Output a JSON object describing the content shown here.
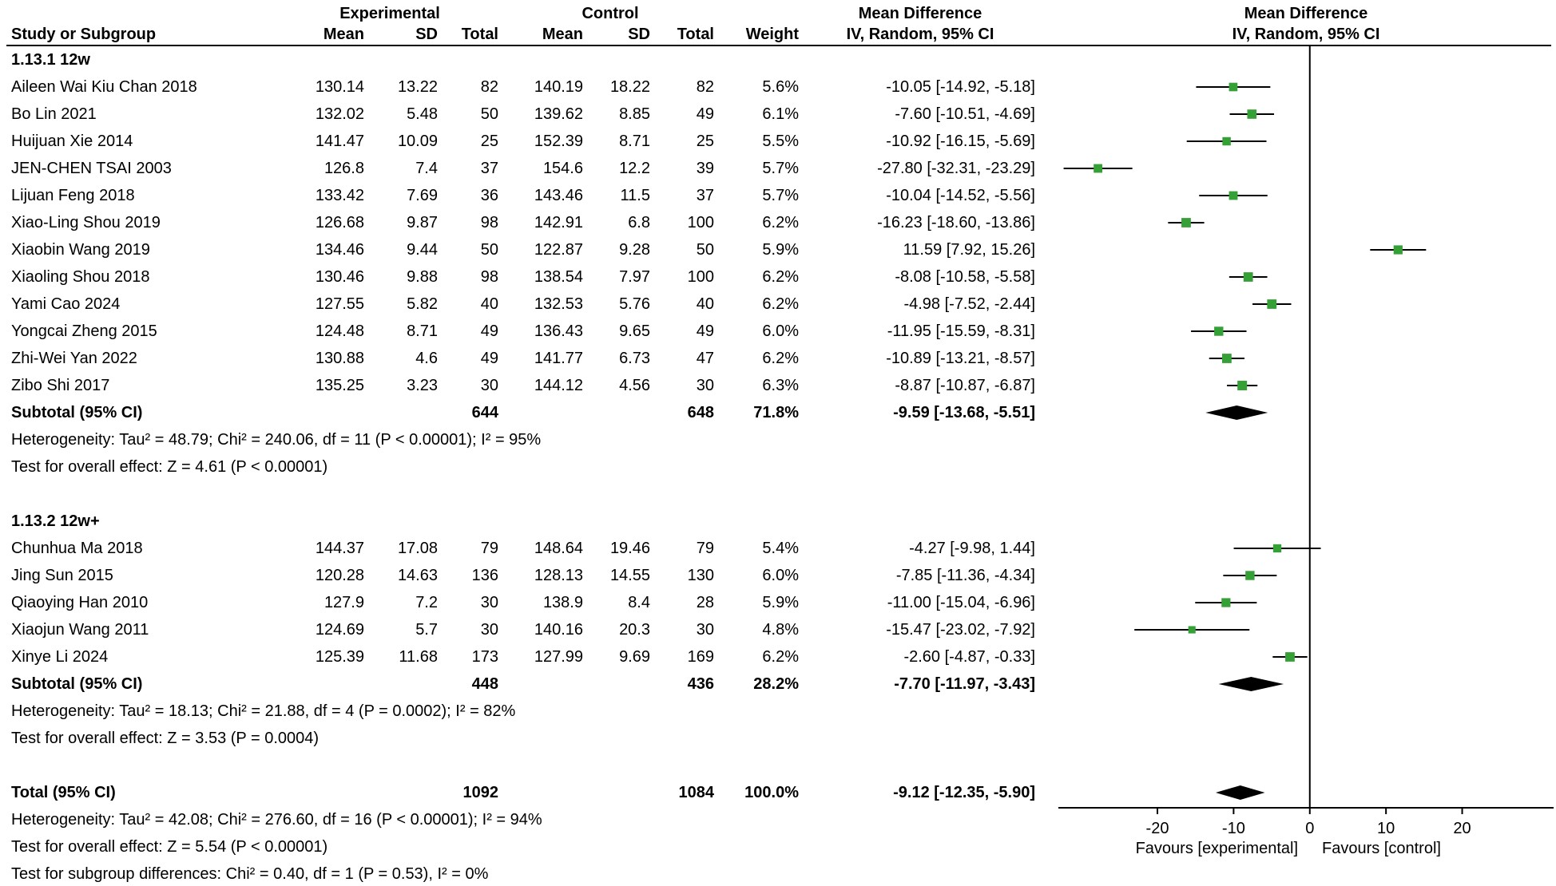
{
  "colors": {
    "square": "#35a035",
    "line": "#000000",
    "diamond": "#000000",
    "text": "#000000",
    "background": "#ffffff"
  },
  "chart_data": {
    "type": "forest",
    "group_headers": {
      "experimental": "Experimental",
      "control": "Control",
      "mean_difference_text": "Mean Difference",
      "mean_difference_plot": "Mean Difference"
    },
    "column_headers": {
      "study": "Study or Subgroup",
      "mean_e": "Mean",
      "sd_e": "SD",
      "total_e": "Total",
      "mean_c": "Mean",
      "sd_c": "SD",
      "total_c": "Total",
      "weight": "Weight",
      "ci_text": "IV, Random, 95% CI",
      "ci_plot": "IV, Random, 95% CI"
    },
    "axis": {
      "min": -33,
      "max": 32,
      "ticks": [
        -20,
        -10,
        0,
        10,
        20
      ],
      "favours_left": "Favours [experimental]",
      "favours_right": "Favours [control]"
    },
    "subgroups": [
      {
        "label": "1.13.1 12w",
        "studies": [
          {
            "name": "Aileen Wai Kiu Chan 2018",
            "mean_e": "130.14",
            "sd_e": "13.22",
            "total_e": "82",
            "mean_c": "140.19",
            "sd_c": "18.22",
            "total_c": "82",
            "weight": "5.6%",
            "ci_text": "-10.05 [-14.92, -5.18]",
            "md": -10.05,
            "lo": -14.92,
            "hi": -5.18,
            "w": 5.6
          },
          {
            "name": "Bo Lin 2021",
            "mean_e": "132.02",
            "sd_e": "5.48",
            "total_e": "50",
            "mean_c": "139.62",
            "sd_c": "8.85",
            "total_c": "49",
            "weight": "6.1%",
            "ci_text": "-7.60 [-10.51, -4.69]",
            "md": -7.6,
            "lo": -10.51,
            "hi": -4.69,
            "w": 6.1
          },
          {
            "name": "Huijuan Xie 2014",
            "mean_e": "141.47",
            "sd_e": "10.09",
            "total_e": "25",
            "mean_c": "152.39",
            "sd_c": "8.71",
            "total_c": "25",
            "weight": "5.5%",
            "ci_text": "-10.92 [-16.15, -5.69]",
            "md": -10.92,
            "lo": -16.15,
            "hi": -5.69,
            "w": 5.5
          },
          {
            "name": "JEN-CHEN TSAI 2003",
            "mean_e": "126.8",
            "sd_e": "7.4",
            "total_e": "37",
            "mean_c": "154.6",
            "sd_c": "12.2",
            "total_c": "39",
            "weight": "5.7%",
            "ci_text": "-27.80 [-32.31, -23.29]",
            "md": -27.8,
            "lo": -32.31,
            "hi": -23.29,
            "w": 5.7
          },
          {
            "name": "Lijuan Feng 2018",
            "mean_e": "133.42",
            "sd_e": "7.69",
            "total_e": "36",
            "mean_c": "143.46",
            "sd_c": "11.5",
            "total_c": "37",
            "weight": "5.7%",
            "ci_text": "-10.04 [-14.52, -5.56]",
            "md": -10.04,
            "lo": -14.52,
            "hi": -5.56,
            "w": 5.7
          },
          {
            "name": "Xiao-Ling Shou 2019",
            "mean_e": "126.68",
            "sd_e": "9.87",
            "total_e": "98",
            "mean_c": "142.91",
            "sd_c": "6.8",
            "total_c": "100",
            "weight": "6.2%",
            "ci_text": "-16.23 [-18.60, -13.86]",
            "md": -16.23,
            "lo": -18.6,
            "hi": -13.86,
            "w": 6.2
          },
          {
            "name": "Xiaobin Wang 2019",
            "mean_e": "134.46",
            "sd_e": "9.44",
            "total_e": "50",
            "mean_c": "122.87",
            "sd_c": "9.28",
            "total_c": "50",
            "weight": "5.9%",
            "ci_text": "11.59 [7.92, 15.26]",
            "md": 11.59,
            "lo": 7.92,
            "hi": 15.26,
            "w": 5.9
          },
          {
            "name": "Xiaoling Shou 2018",
            "mean_e": "130.46",
            "sd_e": "9.88",
            "total_e": "98",
            "mean_c": "138.54",
            "sd_c": "7.97",
            "total_c": "100",
            "weight": "6.2%",
            "ci_text": "-8.08 [-10.58, -5.58]",
            "md": -8.08,
            "lo": -10.58,
            "hi": -5.58,
            "w": 6.2
          },
          {
            "name": "Yami Cao 2024",
            "mean_e": "127.55",
            "sd_e": "5.82",
            "total_e": "40",
            "mean_c": "132.53",
            "sd_c": "5.76",
            "total_c": "40",
            "weight": "6.2%",
            "ci_text": "-4.98 [-7.52, -2.44]",
            "md": -4.98,
            "lo": -7.52,
            "hi": -2.44,
            "w": 6.2
          },
          {
            "name": "Yongcai Zheng 2015",
            "mean_e": "124.48",
            "sd_e": "8.71",
            "total_e": "49",
            "mean_c": "136.43",
            "sd_c": "9.65",
            "total_c": "49",
            "weight": "6.0%",
            "ci_text": "-11.95 [-15.59, -8.31]",
            "md": -11.95,
            "lo": -15.59,
            "hi": -8.31,
            "w": 6.0
          },
          {
            "name": "Zhi-Wei Yan 2022",
            "mean_e": "130.88",
            "sd_e": "4.6",
            "total_e": "49",
            "mean_c": "141.77",
            "sd_c": "6.73",
            "total_c": "47",
            "weight": "6.2%",
            "ci_text": "-10.89 [-13.21, -8.57]",
            "md": -10.89,
            "lo": -13.21,
            "hi": -8.57,
            "w": 6.2
          },
          {
            "name": "Zibo Shi 2017",
            "mean_e": "135.25",
            "sd_e": "3.23",
            "total_e": "30",
            "mean_c": "144.12",
            "sd_c": "4.56",
            "total_c": "30",
            "weight": "6.3%",
            "ci_text": "-8.87 [-10.87, -6.87]",
            "md": -8.87,
            "lo": -10.87,
            "hi": -6.87,
            "w": 6.3
          }
        ],
        "subtotal": {
          "label": "Subtotal (95% CI)",
          "total_e": "644",
          "total_c": "648",
          "weight": "71.8%",
          "ci_text": "-9.59 [-13.68, -5.51]",
          "md": -9.59,
          "lo": -13.68,
          "hi": -5.51
        },
        "heterogeneity": "Heterogeneity: Tau² = 48.79; Chi² = 240.06, df = 11 (P < 0.00001); I² = 95%",
        "overall_effect": "Test for overall effect: Z = 4.61 (P < 0.00001)"
      },
      {
        "label": "1.13.2 12w+",
        "studies": [
          {
            "name": "Chunhua Ma 2018",
            "mean_e": "144.37",
            "sd_e": "17.08",
            "total_e": "79",
            "mean_c": "148.64",
            "sd_c": "19.46",
            "total_c": "79",
            "weight": "5.4%",
            "ci_text": "-4.27 [-9.98, 1.44]",
            "md": -4.27,
            "lo": -9.98,
            "hi": 1.44,
            "w": 5.4
          },
          {
            "name": "Jing Sun 2015",
            "mean_e": "120.28",
            "sd_e": "14.63",
            "total_e": "136",
            "mean_c": "128.13",
            "sd_c": "14.55",
            "total_c": "130",
            "weight": "6.0%",
            "ci_text": "-7.85 [-11.36, -4.34]",
            "md": -7.85,
            "lo": -11.36,
            "hi": -4.34,
            "w": 6.0
          },
          {
            "name": "Qiaoying Han 2010",
            "mean_e": "127.9",
            "sd_e": "7.2",
            "total_e": "30",
            "mean_c": "138.9",
            "sd_c": "8.4",
            "total_c": "28",
            "weight": "5.9%",
            "ci_text": "-11.00 [-15.04, -6.96]",
            "md": -11.0,
            "lo": -15.04,
            "hi": -6.96,
            "w": 5.9
          },
          {
            "name": "Xiaojun Wang 2011",
            "mean_e": "124.69",
            "sd_e": "5.7",
            "total_e": "30",
            "mean_c": "140.16",
            "sd_c": "20.3",
            "total_c": "30",
            "weight": "4.8%",
            "ci_text": "-15.47 [-23.02, -7.92]",
            "md": -15.47,
            "lo": -23.02,
            "hi": -7.92,
            "w": 4.8
          },
          {
            "name": "Xinye Li 2024",
            "mean_e": "125.39",
            "sd_e": "11.68",
            "total_e": "173",
            "mean_c": "127.99",
            "sd_c": "9.69",
            "total_c": "169",
            "weight": "6.2%",
            "ci_text": "-2.60 [-4.87, -0.33]",
            "md": -2.6,
            "lo": -4.87,
            "hi": -0.33,
            "w": 6.2
          }
        ],
        "subtotal": {
          "label": "Subtotal (95% CI)",
          "total_e": "448",
          "total_c": "436",
          "weight": "28.2%",
          "ci_text": "-7.70 [-11.97, -3.43]",
          "md": -7.7,
          "lo": -11.97,
          "hi": -3.43
        },
        "heterogeneity": "Heterogeneity: Tau² = 18.13; Chi² = 21.88, df = 4 (P = 0.0002); I² = 82%",
        "overall_effect": "Test for overall effect: Z = 3.53 (P = 0.0004)"
      }
    ],
    "total": {
      "label": "Total (95% CI)",
      "total_e": "1092",
      "total_c": "1084",
      "weight": "100.0%",
      "ci_text": "-9.12 [-12.35, -5.90]",
      "md": -9.12,
      "lo": -12.35,
      "hi": -5.9
    },
    "total_heterogeneity": "Heterogeneity: Tau² = 42.08; Chi² = 276.60, df = 16 (P < 0.00001); I² = 94%",
    "total_overall_effect": "Test for overall effect: Z = 5.54 (P < 0.00001)",
    "subgroup_differences": "Test for subgroup differences: Chi² = 0.40, df = 1 (P = 0.53), I² = 0%"
  }
}
